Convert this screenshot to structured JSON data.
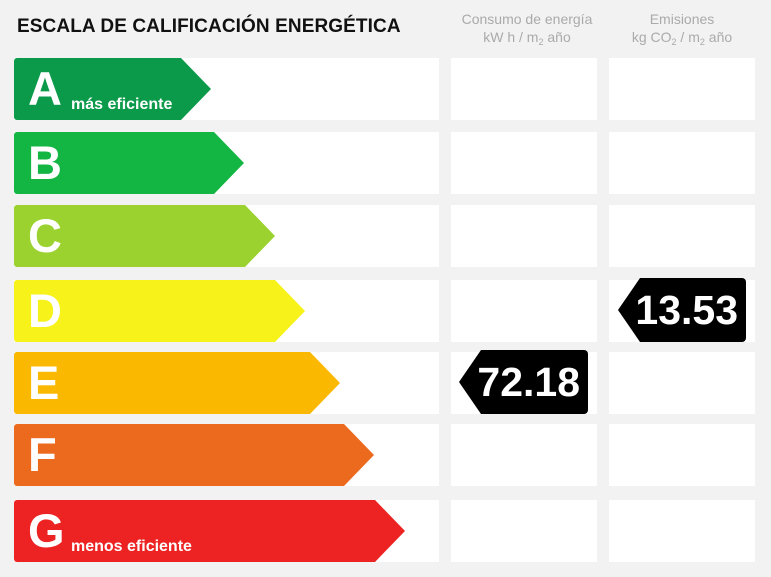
{
  "title": "ESCALA DE CALIFICACIÓN ENERGÉTICA",
  "columns": {
    "consumo": {
      "line1": "Consumo de energía",
      "line2_a": "kW h / m",
      "line2_sub": "2",
      "line2_b": " año"
    },
    "emisiones": {
      "line1": "Emisiones",
      "line2_a": "kg CO",
      "line2_sub1": "2",
      "line2_b": " / m",
      "line2_sub2": "2",
      "line2_c": " año"
    }
  },
  "ratings": [
    {
      "letter": "A",
      "desc": "más eficiente",
      "color": "#0a9a4a"
    },
    {
      "letter": "B",
      "desc": "",
      "color": "#13b543"
    },
    {
      "letter": "C",
      "desc": "",
      "color": "#9bd22f"
    },
    {
      "letter": "D",
      "desc": "",
      "color": "#f6f21a"
    },
    {
      "letter": "E",
      "desc": "",
      "color": "#fbb800"
    },
    {
      "letter": "F",
      "desc": "",
      "color": "#ec6a1e"
    },
    {
      "letter": "G",
      "desc": "menos eficiente",
      "color": "#ec2322"
    }
  ],
  "consumo_value": {
    "value": "72.18",
    "rating": "E"
  },
  "emisiones_value": {
    "value": "13.53",
    "rating": "D"
  }
}
